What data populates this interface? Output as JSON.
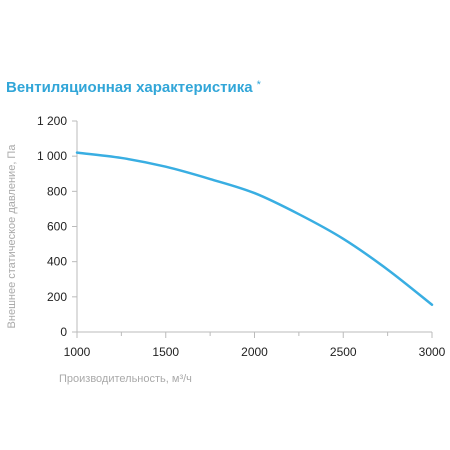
{
  "chart_data": {
    "type": "line",
    "title": "Вентиляционная характеристика",
    "title_mark": "*",
    "xlabel": "Производительность, м³/ч",
    "ylabel": "Внешнее статическое давление, Па",
    "xlim": [
      1000,
      3000
    ],
    "ylim": [
      0,
      1200
    ],
    "x_ticks": [
      1000,
      1500,
      2000,
      2500,
      3000
    ],
    "x_tick_labels": [
      "1000",
      "1500",
      "2000",
      "2500",
      "3000"
    ],
    "y_ticks": [
      0,
      200,
      400,
      600,
      800,
      1000,
      1200
    ],
    "y_tick_labels": [
      "0",
      "200",
      "400",
      "600",
      "800",
      "1 000",
      "1 200"
    ],
    "grid": false,
    "line_color": "#39aee2",
    "axis_color": "#bbbbbb",
    "series": [
      {
        "x": [
          1000,
          1250,
          1500,
          1750,
          2000,
          2250,
          2500,
          2750,
          3000
        ],
        "y": [
          1020,
          990,
          940,
          870,
          790,
          670,
          530,
          355,
          155
        ]
      }
    ]
  }
}
